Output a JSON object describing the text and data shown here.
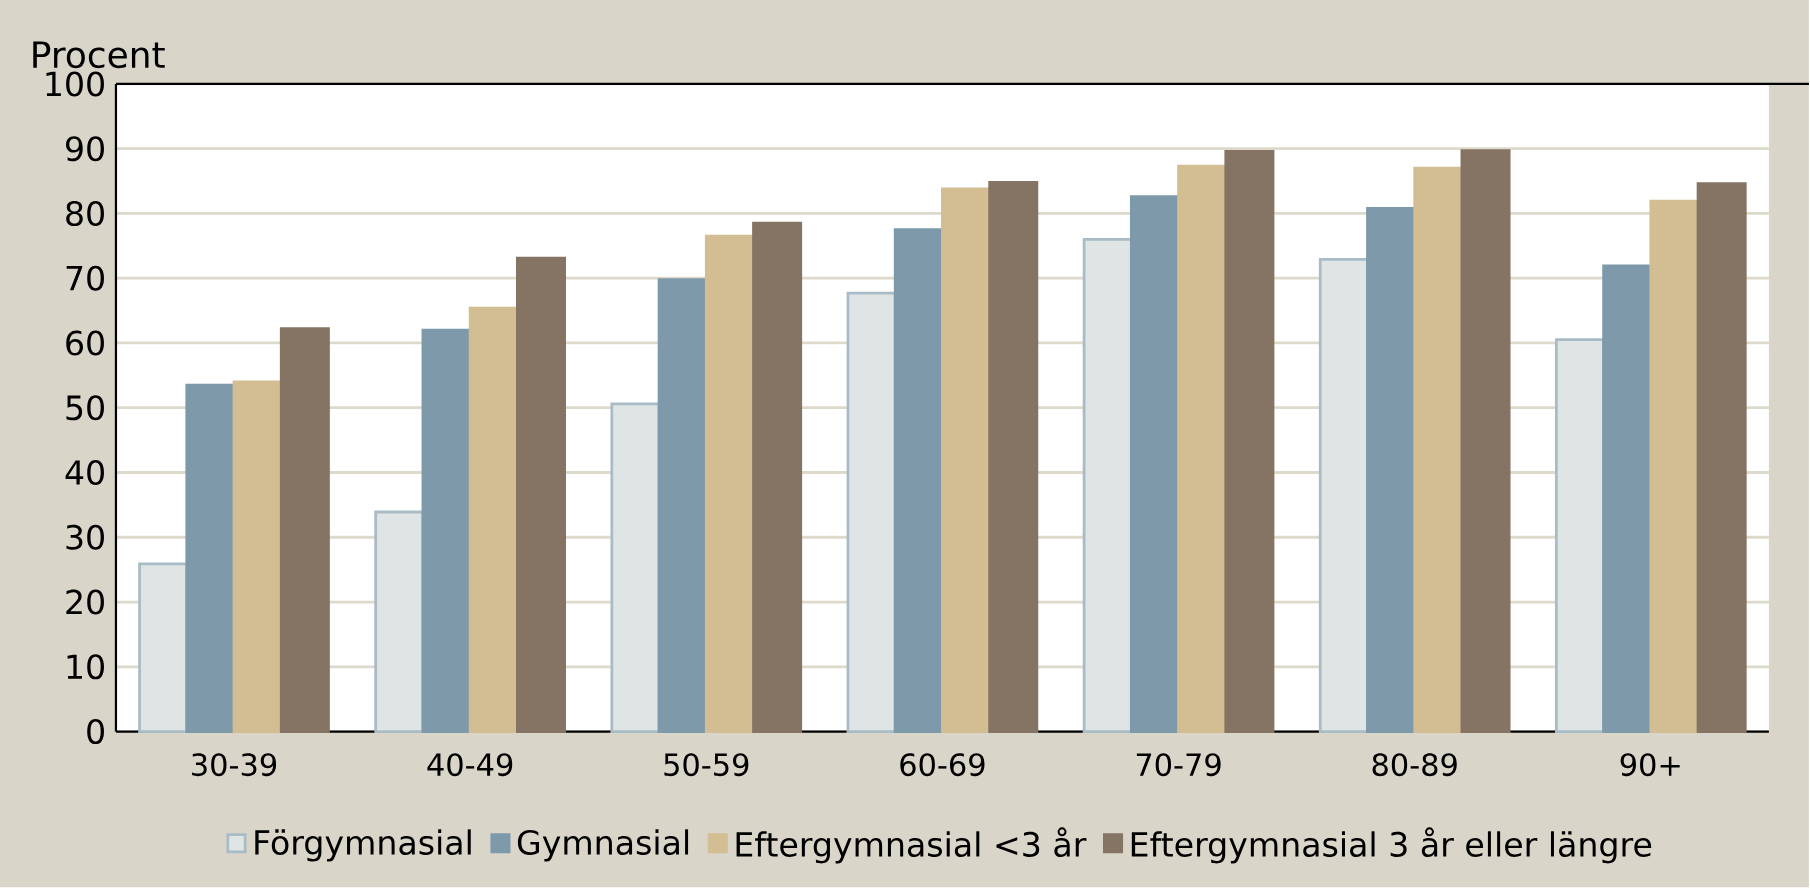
{
  "chart_data": {
    "type": "bar",
    "ylabel": "Procent",
    "categories": [
      "30-39",
      "40-49",
      "50-59",
      "60-69",
      "70-79",
      "80-89",
      "90+"
    ],
    "series": [
      {
        "name": "Förgymnasial",
        "color": "#dfe4e4",
        "values": [
          25.9,
          33.9,
          50.6,
          67.7,
          76.0,
          72.9,
          60.5
        ]
      },
      {
        "name": "Gymnasial",
        "color": "#7d99aa",
        "values": [
          53.5,
          62.0,
          69.8,
          77.5,
          82.6,
          80.8,
          71.9
        ]
      },
      {
        "name": "Eftergymnasial <3 år",
        "color": "#d3bd92",
        "values": [
          54.0,
          65.4,
          76.5,
          83.8,
          87.3,
          87.0,
          81.9
        ]
      },
      {
        "name": "Eftergymnasial 3 år eller längre",
        "color": "#857463",
        "values": [
          62.2,
          73.1,
          78.5,
          84.8,
          89.6,
          89.7,
          84.6
        ]
      }
    ],
    "ylim": [
      0,
      100
    ],
    "yticks": [
      0,
      10,
      20,
      30,
      40,
      50,
      60,
      70,
      80,
      90,
      100
    ],
    "grid": "y",
    "legend": "bottom"
  }
}
